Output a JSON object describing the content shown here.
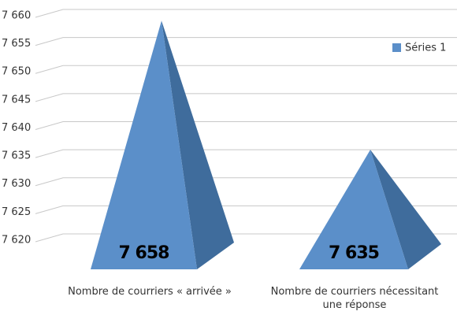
{
  "chart_data": {
    "type": "pyramid",
    "categories": [
      "Nombre de courriers « arrivée »",
      "Nombre de courriers nécessitant une réponse"
    ],
    "series": [
      {
        "name": "Séries 1",
        "color": "#5b8fc9",
        "values": [
          7658,
          7635
        ],
        "value_labels": [
          "7 658",
          "7 635"
        ]
      }
    ],
    "ylim": [
      7615,
      7660
    ],
    "yticks": [
      {
        "value": 7620,
        "label": "7 620"
      },
      {
        "value": 7625,
        "label": "7 625"
      },
      {
        "value": 7630,
        "label": "7 630"
      },
      {
        "value": 7635,
        "label": "7 635"
      },
      {
        "value": 7640,
        "label": "7 640"
      },
      {
        "value": 7645,
        "label": "7 645"
      },
      {
        "value": 7650,
        "label": "7 650"
      },
      {
        "value": 7655,
        "label": "7 655"
      },
      {
        "value": 7660,
        "label": "7 660"
      }
    ],
    "grid": true,
    "legend": "right"
  }
}
